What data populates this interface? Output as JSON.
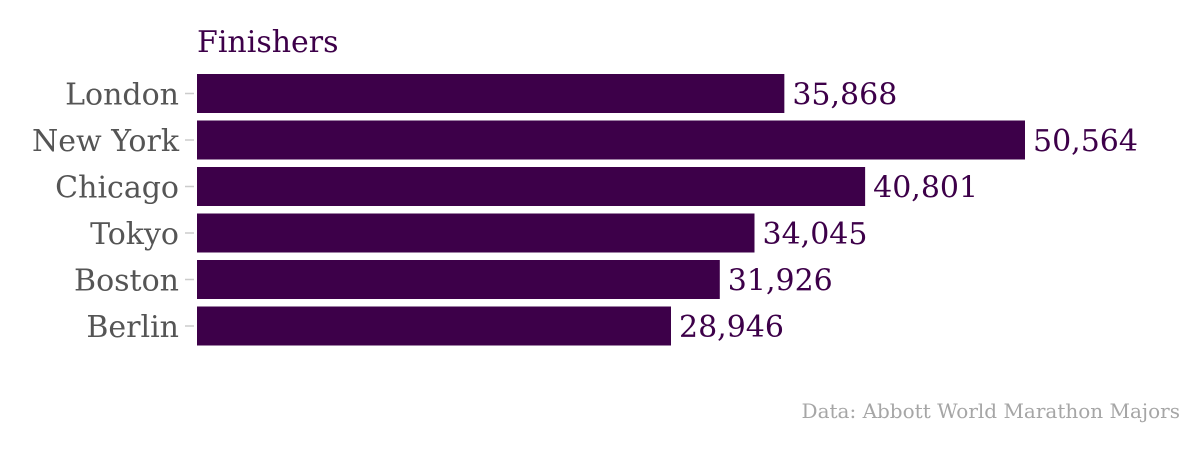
{
  "chart_data": {
    "type": "bar",
    "orientation": "horizontal",
    "title": "Finishers",
    "categories": [
      "London",
      "New York",
      "Chicago",
      "Tokyo",
      "Boston",
      "Berlin"
    ],
    "values": [
      35868,
      50564,
      40801,
      34045,
      31926,
      28946
    ],
    "value_labels": [
      "35,868",
      "50,564",
      "40,801",
      "34,045",
      "31,926",
      "28,946"
    ],
    "xlim": [
      0,
      50564
    ],
    "grid": false,
    "legend": "none",
    "source": "Data: Abbott World Marathon Majors"
  },
  "colors": {
    "bar": "#3d0049",
    "title": "#3d0049",
    "value_label": "#3d0049",
    "category_label": "#555555",
    "tick": "#cccccc",
    "source": "#a6a6a6"
  }
}
